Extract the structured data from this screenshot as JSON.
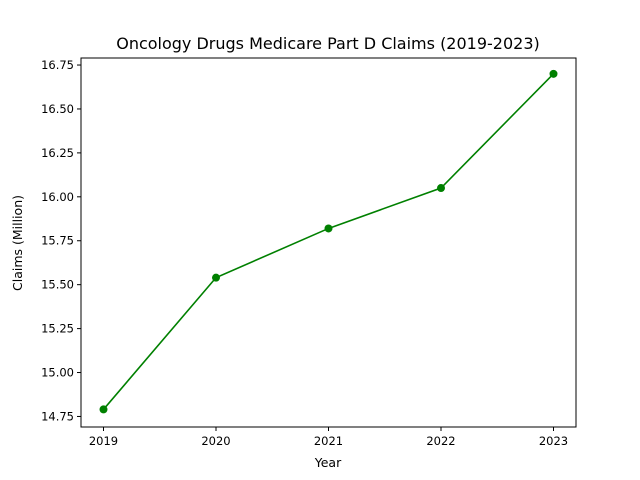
{
  "chart_data": {
    "type": "line",
    "title": "Oncology Drugs Medicare Part D Claims (2019-2023)",
    "xlabel": "Year",
    "ylabel": "Claims (Million)",
    "x": [
      2019,
      2020,
      2021,
      2022,
      2023
    ],
    "series": [
      {
        "values": [
          14.79,
          15.54,
          15.82,
          16.05,
          16.7
        ],
        "color": "#008000",
        "marker": "circle"
      }
    ],
    "xlim": [
      2018.8,
      2023.2
    ],
    "ylim": [
      14.69,
      16.79
    ],
    "xticks": [
      "2019",
      "2020",
      "2021",
      "2022",
      "2023"
    ],
    "yticks": [
      "14.75",
      "15.00",
      "15.25",
      "15.50",
      "15.75",
      "16.00",
      "16.25",
      "16.50",
      "16.75"
    ],
    "grid": false,
    "legend": "none"
  }
}
